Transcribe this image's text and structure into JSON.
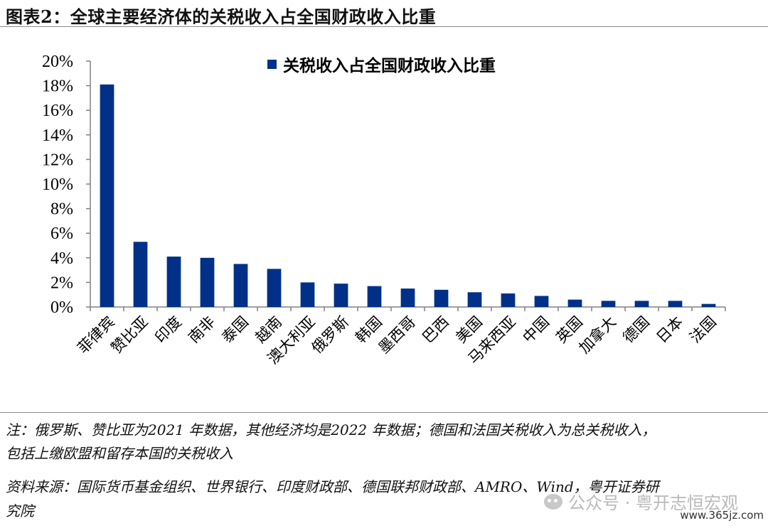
{
  "page": {
    "title": "图表2：全球主要经济体的关税收入占全国财政收入比重",
    "note_line1": "注：俄罗斯、赞比亚为2021 年数据，其他经济均是2022 年数据；德国和法国关税收入为总关税收入，",
    "note_line2": "包括上缴欧盟和留存本国的关税收入",
    "source_line1": "资料来源：国际货币基金组织、世界银行、印度财政部、德国联邦财政部、AMRO、Wind，粤开证券研",
    "source_line2": "究院",
    "watermark": "公众号 · 粤开志恒宏观",
    "site": "www.365jz.com"
  },
  "colors": {
    "bar": "#003087",
    "axis": "#808080"
  },
  "chart_data": {
    "type": "bar",
    "legend": "关税收入占全国财政收入比重",
    "legend_position": "top",
    "categories": [
      "菲律宾",
      "赞比亚",
      "印度",
      "南非",
      "泰国",
      "越南",
      "澳大利亚",
      "俄罗斯",
      "韩国",
      "墨西哥",
      "巴西",
      "美国",
      "马来西亚",
      "中国",
      "英国",
      "加拿大",
      "德国",
      "日本",
      "法国"
    ],
    "values": [
      18.1,
      5.3,
      4.1,
      4.0,
      3.5,
      3.1,
      2.0,
      1.9,
      1.7,
      1.5,
      1.4,
      1.2,
      1.1,
      0.9,
      0.6,
      0.5,
      0.5,
      0.5,
      0.25
    ],
    "yticks": [
      "0%",
      "2%",
      "4%",
      "6%",
      "8%",
      "10%",
      "12%",
      "14%",
      "16%",
      "18%",
      "20%"
    ],
    "ylim": [
      0,
      20
    ],
    "grid": false
  }
}
